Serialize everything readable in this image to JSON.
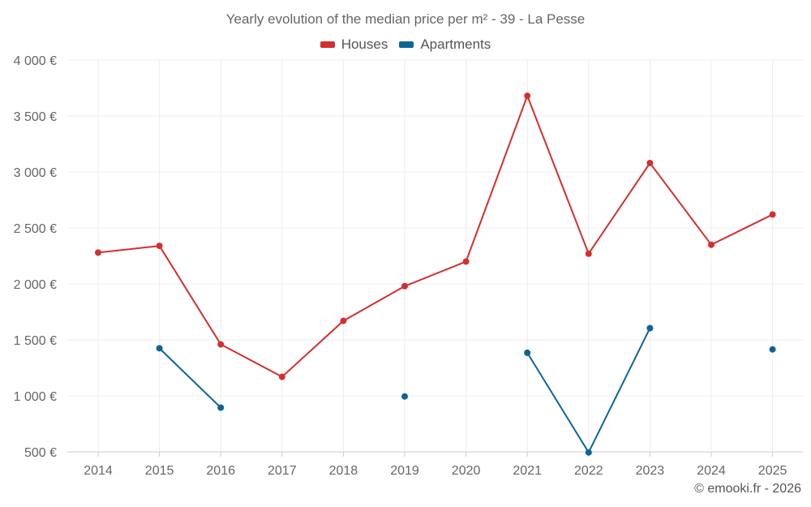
{
  "chart_data": {
    "type": "line",
    "title": "Yearly evolution of the median price per m² - 39 - La Pesse",
    "categories": [
      "2014",
      "2015",
      "2016",
      "2017",
      "2018",
      "2019",
      "2020",
      "2021",
      "2022",
      "2023",
      "2024",
      "2025"
    ],
    "y_tick_labels": [
      "500 €",
      "1 000 €",
      "1 500 €",
      "2 000 €",
      "2 500 €",
      "3 000 €",
      "3 500 €",
      "4 000 €"
    ],
    "y_ticks": [
      500,
      1000,
      1500,
      2000,
      2500,
      3000,
      3500,
      4000
    ],
    "ylim": [
      500,
      4000
    ],
    "series": [
      {
        "name": "Houses",
        "color": "#d32f2f",
        "values": [
          2280,
          2340,
          1460,
          1170,
          1670,
          1980,
          2200,
          3680,
          2270,
          3080,
          2350,
          2620
        ]
      },
      {
        "name": "Apartments",
        "color": "#0d6596",
        "values": [
          null,
          1425,
          895,
          null,
          null,
          995,
          null,
          1385,
          495,
          1605,
          null,
          1415
        ]
      }
    ],
    "legend_position": "top-center",
    "grid": true
  },
  "footer": {
    "credit": "© emooki.fr - 2026"
  }
}
